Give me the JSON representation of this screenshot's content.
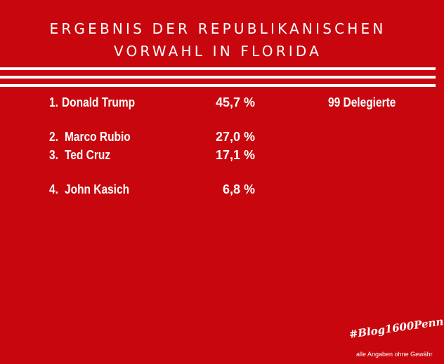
{
  "title": {
    "line1": "Ergebnis der Republikanischen",
    "line2": "Vorwahl in Florida"
  },
  "results": [
    {
      "rank": "1.",
      "name": "Donald Trump",
      "percent": "45,7 %",
      "delegates": "99 Delegierte"
    },
    {
      "rank": "2.",
      "name": "Marco Rubio",
      "percent": "27,0 %"
    },
    {
      "rank": "3.",
      "name": "Ted Cruz",
      "percent": "17,1 %"
    },
    {
      "rank": "4.",
      "name": "John Kasich",
      "percent": "6,8 %"
    }
  ],
  "footer": {
    "hashtag": "#Blog1600Penn",
    "disclaimer": "alle Angaben ohne Gewähr"
  },
  "colors": {
    "background": "#c8060d",
    "foreground": "#ffffff"
  }
}
